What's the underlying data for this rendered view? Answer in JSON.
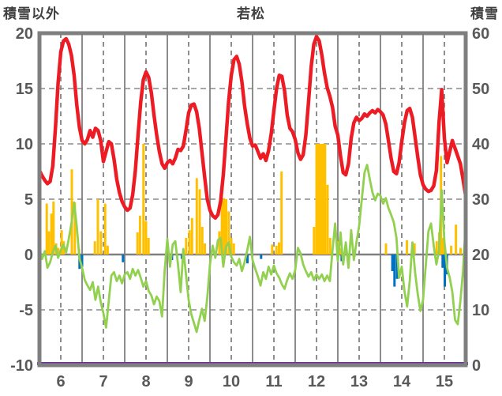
{
  "header": {
    "left_axis_title": "積雪以外",
    "chart_title": "若松",
    "right_axis_title": "積雪"
  },
  "chart_data": {
    "type": "line+bar",
    "title": "若松",
    "x_axis": {
      "tick_labels": [
        "6",
        "7",
        "8",
        "9",
        "10",
        "11",
        "12",
        "13",
        "14",
        "15"
      ],
      "day_start": 6,
      "day_end": 16
    },
    "left_axis": {
      "title": "積雪以外",
      "ticks": [
        20,
        15,
        10,
        5,
        0,
        -5,
        -10
      ],
      "range": [
        -10,
        20
      ]
    },
    "right_axis": {
      "title": "積雪",
      "ticks": [
        60,
        50,
        40,
        30,
        20,
        10,
        0
      ],
      "range": [
        0,
        60
      ]
    },
    "grid": {
      "h_dashed_values": [
        15,
        10,
        5,
        -5
      ],
      "v_solid_days": [
        7,
        8,
        9,
        10,
        11,
        12,
        13,
        14,
        15
      ],
      "v_dashed_days": [
        6.5,
        7.5,
        8.5,
        9.5,
        10.5,
        11.5,
        12.5,
        13.5,
        14.5,
        15.5
      ]
    },
    "colors": {
      "axis_gray": "#7f7f7f",
      "label_gray": "#595959"
    },
    "series": {
      "temperature_line": {
        "name": "red-line",
        "color": "#ed1c24",
        "x_start": 6,
        "x_step": 0.0625,
        "values": [
          7.6,
          7.1,
          6.7,
          6.4,
          6.6,
          8.0,
          11.5,
          15.5,
          18.3,
          19.3,
          19.5,
          19.0,
          18.0,
          16.2,
          13.5,
          11.5,
          10.3,
          10.0,
          10.4,
          11.2,
          10.6,
          11.4,
          11.2,
          10.3,
          8.4,
          9.3,
          10.2,
          10.0,
          8.6,
          6.8,
          5.6,
          4.8,
          4.3,
          4.0,
          4.2,
          5.4,
          7.6,
          10.8,
          13.8,
          15.8,
          16.5,
          16.0,
          14.6,
          12.6,
          10.8,
          9.3,
          8.2,
          7.8,
          8.3,
          8.5,
          8.2,
          8.7,
          9.5,
          9.4,
          9.8,
          11.2,
          12.8,
          13.5,
          13.6,
          12.9,
          11.4,
          9.2,
          7.0,
          5.0,
          4.0,
          3.5,
          3.3,
          3.6,
          4.8,
          7.2,
          10.5,
          13.8,
          16.2,
          17.6,
          17.9,
          17.2,
          15.6,
          13.4,
          11.8,
          10.5,
          9.8,
          9.9,
          9.3,
          8.7,
          9.1,
          8.5,
          9.4,
          10.9,
          13.0,
          15.0,
          16.2,
          16.1,
          14.8,
          12.6,
          11.4,
          11.1,
          10.4,
          9.2,
          8.6,
          9.0,
          10.8,
          13.8,
          17.0,
          19.0,
          19.7,
          19.3,
          18.0,
          16.4,
          15.1,
          14.3,
          13.3,
          11.6,
          10.8,
          8.9,
          7.4,
          7.2,
          8.2,
          10.5,
          11.9,
          12.4,
          12.1,
          12.3,
          12.7,
          12.5,
          12.8,
          13.0,
          12.8,
          13.1,
          12.9,
          12.6,
          11.8,
          10.3,
          8.7,
          7.5,
          7.3,
          8.3,
          10.2,
          11.9,
          13.0,
          13.2,
          12.4,
          10.6,
          8.8,
          7.2,
          6.3,
          5.9,
          5.7,
          5.8,
          6.2,
          7.6,
          12.0,
          14.9,
          10.5,
          8.3,
          9.3,
          10.3,
          9.6,
          8.9,
          8.2,
          6.8,
          5.3
        ]
      },
      "green_line": {
        "name": "green-line",
        "color": "#92d050",
        "x_start": 6,
        "x_step": 0.0625,
        "values": [
          0.5,
          -0.4,
          0.3,
          -1.2,
          -0.7,
          0.2,
          0.8,
          -0.3,
          0.4,
          0.9,
          0.2,
          1.4,
          2.8,
          4.7,
          2.5,
          -0.3,
          -1.2,
          -2.3,
          -2.8,
          -3.2,
          -2.5,
          -4.1,
          -2.9,
          -4.3,
          -5.3,
          -6.6,
          -4.2,
          -1.9,
          -1.6,
          -2.4,
          -1.9,
          -2.6,
          -1.8,
          -1.6,
          -2.2,
          -1.3,
          -1.9,
          -1.4,
          -2.1,
          -2.9,
          -2.4,
          -3.3,
          -3.7,
          -4.5,
          -3.8,
          -4.2,
          -5.6,
          -1.5,
          1.4,
          -1.1,
          0.9,
          1.2,
          -0.9,
          -3.4,
          0.5,
          -1.8,
          -4.1,
          -5.4,
          -6.2,
          -7.0,
          -5.9,
          -4.9,
          -6.0,
          -3.9,
          -0.9,
          0.8,
          -0.3,
          1.3,
          1.5,
          -1.1,
          0.7,
          1.1,
          -0.2,
          -0.7,
          -1.0,
          -0.4,
          -1.5,
          -0.7,
          0.4,
          1.6,
          -0.5,
          -1.3,
          -2.0,
          -2.8,
          -1.6,
          -2.2,
          -1.1,
          -1.8,
          -1.0,
          -1.7,
          -2.1,
          -2.7,
          -3.1,
          -2.3,
          -1.7,
          -2.2,
          -1.4,
          0.6,
          0.1,
          -0.9,
          -1.5,
          -2.0,
          -1.6,
          -2.3,
          -1.8,
          -2.2,
          -1.8,
          -2.4,
          -1.9,
          -2.4,
          0.4,
          2.8,
          -0.6,
          2.0,
          -0.9,
          1.1,
          -1.2,
          2.2,
          -0.5,
          1.1,
          2.6,
          5.0,
          7.4,
          8.1,
          6.8,
          5.6,
          4.9,
          5.5,
          5.3,
          4.6,
          5.1,
          4.2,
          3.6,
          2.9,
          1.5,
          -2.1,
          -1.1,
          -3.3,
          -4.7,
          -2.4,
          1.1,
          -1.6,
          -3.6,
          -5.1,
          -4.1,
          -1.0,
          2.1,
          2.8,
          0.8,
          -0.9,
          0.4,
          5.8,
          1.2,
          -1.2,
          -2.1,
          -3.4,
          -5.9,
          -6.3,
          -4.2,
          -1.5,
          2.8
        ]
      },
      "precipitation_bars": {
        "name": "orange-bars",
        "color": "#ffc000",
        "points": [
          [
            6.17,
            4.6
          ],
          [
            6.22,
            2.1
          ],
          [
            6.28,
            3.7
          ],
          [
            6.33,
            4.8
          ],
          [
            6.39,
            1.0
          ],
          [
            6.44,
            0.6
          ],
          [
            6.52,
            2.2
          ],
          [
            6.57,
            1.2
          ],
          [
            6.76,
            7.7
          ],
          [
            6.83,
            4.7
          ],
          [
            6.93,
            0.5
          ],
          [
            7.3,
            1.2
          ],
          [
            7.37,
            5.0
          ],
          [
            7.44,
            2.1
          ],
          [
            7.54,
            4.6
          ],
          [
            7.6,
            0.8
          ],
          [
            8.3,
            2.0
          ],
          [
            8.36,
            3.5
          ],
          [
            8.44,
            10.0
          ],
          [
            8.5,
            3.0
          ],
          [
            8.56,
            1.5
          ],
          [
            9.44,
            1.5
          ],
          [
            9.52,
            2.2
          ],
          [
            9.58,
            3.3
          ],
          [
            9.69,
            6.9
          ],
          [
            9.76,
            5.9
          ],
          [
            9.82,
            2.5
          ],
          [
            9.88,
            1.0
          ],
          [
            10.22,
            2.1
          ],
          [
            10.28,
            4.9
          ],
          [
            10.33,
            5.1
          ],
          [
            10.38,
            5.0
          ],
          [
            10.44,
            3.9
          ],
          [
            10.5,
            1.5
          ],
          [
            10.56,
            1.0
          ],
          [
            11.46,
            0.9
          ],
          [
            11.56,
            0.8
          ],
          [
            11.62,
            1.1
          ],
          [
            11.68,
            7.5
          ],
          [
            12.44,
            2.5
          ],
          [
            12.5,
            10
          ],
          [
            12.55,
            10
          ],
          [
            12.6,
            10
          ],
          [
            12.65,
            10
          ],
          [
            12.7,
            10
          ],
          [
            12.76,
            6.3
          ],
          [
            12.82,
            1.5
          ],
          [
            13.0,
            1.2
          ],
          [
            13.06,
            0.6
          ],
          [
            14.13,
            1.0
          ],
          [
            14.62,
            1.3
          ],
          [
            14.8,
            1.0
          ],
          [
            15.32,
            1.2
          ],
          [
            15.38,
            2.0
          ],
          [
            15.42,
            8.9
          ],
          [
            15.47,
            1.5
          ],
          [
            15.66,
            0.8
          ],
          [
            15.77,
            2.7
          ],
          [
            15.88,
            0.6
          ]
        ]
      },
      "negative_bars": {
        "name": "blue-bars",
        "color": "#0070c0",
        "points": [
          [
            6.94,
            -1.3
          ],
          [
            7.0,
            -1.1
          ],
          [
            7.96,
            -0.7
          ],
          [
            9.11,
            -0.5
          ],
          [
            9.34,
            -0.4
          ],
          [
            10.88,
            -0.8
          ],
          [
            11.2,
            -0.4
          ],
          [
            13.09,
            -0.6
          ],
          [
            14.28,
            -1.5
          ],
          [
            14.33,
            -2.9
          ],
          [
            14.39,
            -2.2
          ],
          [
            15.46,
            -1.2
          ],
          [
            15.51,
            -2.9
          ],
          [
            15.56,
            -1.8
          ]
        ]
      },
      "snow_depth_line": {
        "name": "purple-line",
        "color": "#7030a0",
        "constant_value": 0
      }
    }
  }
}
